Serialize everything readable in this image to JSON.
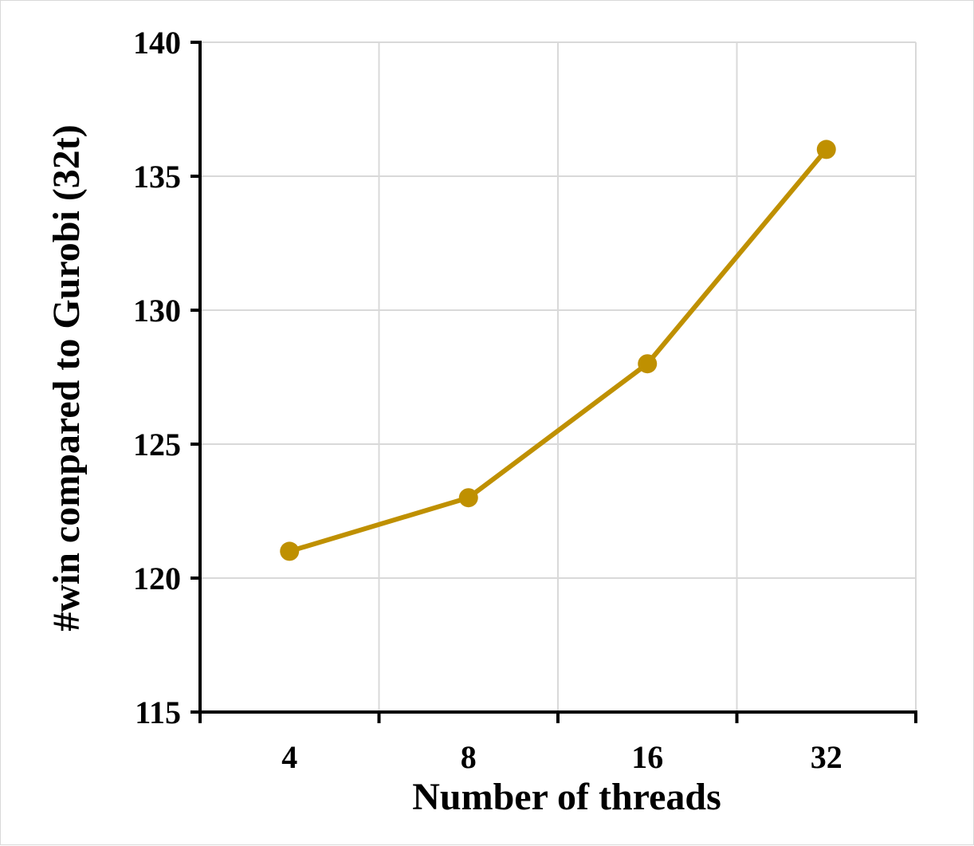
{
  "chart_data": {
    "type": "line",
    "title": "",
    "xlabel": "Number of threads",
    "ylabel": "#win compared to Gurobi (32t)",
    "categories": [
      "4",
      "8",
      "16",
      "32"
    ],
    "series": [
      {
        "values": [
          121,
          123,
          128,
          136
        ],
        "color": "#bf9000"
      }
    ],
    "ylim": [
      115,
      140
    ],
    "yticks": [
      115,
      120,
      125,
      130,
      135,
      140
    ],
    "grid": true,
    "legend": "none"
  }
}
